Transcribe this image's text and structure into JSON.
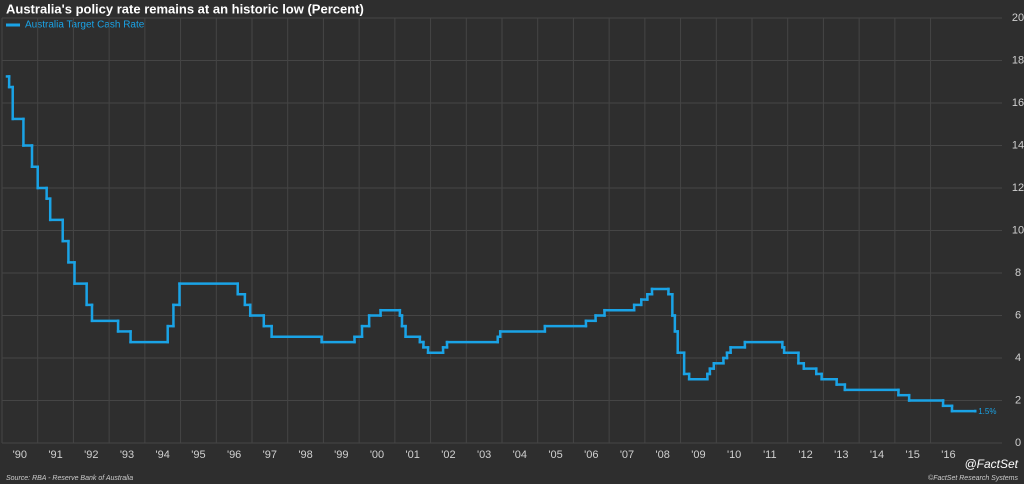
{
  "chart_data": {
    "type": "line",
    "title": "Australia's policy rate remains at an historic low (Percent)",
    "source": "Source: RBA - Reserve Bank of Australia",
    "copyright": "©FactSet Research Systems",
    "brand": "@FactSet",
    "annotation": "1.5%",
    "step": true,
    "grid": true,
    "legend": "top-left",
    "xlim": [
      1990,
      2018
    ],
    "ylim": [
      0,
      20
    ],
    "yticks": [
      0,
      2,
      4,
      6,
      8,
      10,
      12,
      14,
      16,
      18,
      20
    ],
    "xticks": [
      {
        "value": 1990,
        "label": "'90"
      },
      {
        "value": 1991,
        "label": "'91"
      },
      {
        "value": 1992,
        "label": "'92"
      },
      {
        "value": 1993,
        "label": "'93"
      },
      {
        "value": 1994,
        "label": "'94"
      },
      {
        "value": 1995,
        "label": "'95"
      },
      {
        "value": 1996,
        "label": "'96"
      },
      {
        "value": 1997,
        "label": "'97"
      },
      {
        "value": 1998,
        "label": "'98"
      },
      {
        "value": 1999,
        "label": "'99"
      },
      {
        "value": 2000,
        "label": "'00"
      },
      {
        "value": 2001,
        "label": "'01"
      },
      {
        "value": 2002,
        "label": "'02"
      },
      {
        "value": 2003,
        "label": "'03"
      },
      {
        "value": 2004,
        "label": "'04"
      },
      {
        "value": 2005,
        "label": "'05"
      },
      {
        "value": 2006,
        "label": "'06"
      },
      {
        "value": 2007,
        "label": "'07"
      },
      {
        "value": 2008,
        "label": "'08"
      },
      {
        "value": 2009,
        "label": "'09"
      },
      {
        "value": 2010,
        "label": "'10"
      },
      {
        "value": 2011,
        "label": "'11"
      },
      {
        "value": 2012,
        "label": "'12"
      },
      {
        "value": 2013,
        "label": "'13"
      },
      {
        "value": 2014,
        "label": "'14"
      },
      {
        "value": 2015,
        "label": "'15"
      },
      {
        "value": 2016,
        "label": "'16"
      }
    ],
    "x": [
      1990.14,
      1990.2,
      1990.3,
      1990.6,
      1990.84,
      1991.0,
      1991.25,
      1991.35,
      1991.7,
      1991.86,
      1992.03,
      1992.37,
      1992.52,
      1993.25,
      1993.6,
      1994.64,
      1994.8,
      1994.97,
      1996.6,
      1996.8,
      1996.95,
      1997.33,
      1997.55,
      1998.95,
      1999.87,
      2000.08,
      2000.28,
      2000.6,
      2001.14,
      2001.2,
      2001.3,
      2001.7,
      2001.8,
      2001.93,
      2002.35,
      2002.46,
      2003.88,
      2003.95,
      2005.2,
      2006.35,
      2006.62,
      2006.87,
      2007.7,
      2007.9,
      2008.07,
      2008.2,
      2008.66,
      2008.77,
      2008.84,
      2008.92,
      2009.1,
      2009.24,
      2009.75,
      2009.82,
      2009.93,
      2010.2,
      2010.3,
      2010.4,
      2010.8,
      2011.85,
      2011.9,
      2012.3,
      2012.45,
      2012.8,
      2012.95,
      2013.37,
      2013.6,
      2015.1,
      2015.4,
      2016.35,
      2016.6,
      2017.25
    ],
    "series": [
      {
        "name": "Australia Target Cash Rate",
        "color": "#1aa3e6",
        "values": [
          17.25,
          16.75,
          15.25,
          14,
          13,
          12,
          11.5,
          10.5,
          9.5,
          8.5,
          7.5,
          6.5,
          5.75,
          5.25,
          4.75,
          5.5,
          6.5,
          7.5,
          7,
          6.5,
          6,
          5.5,
          5,
          4.75,
          5,
          5.5,
          6,
          6.25,
          6,
          5.5,
          5,
          4.75,
          4.5,
          4.25,
          4.5,
          4.75,
          5,
          5.25,
          5.5,
          5.75,
          6,
          6.25,
          6.5,
          6.75,
          7,
          7.25,
          7,
          6,
          5.25,
          4.25,
          3.25,
          3,
          3.25,
          3.5,
          3.75,
          4,
          4.25,
          4.5,
          4.75,
          4.5,
          4.25,
          3.75,
          3.5,
          3.25,
          3,
          2.75,
          2.5,
          2.25,
          2,
          1.75,
          1.5,
          1.5
        ]
      }
    ]
  }
}
